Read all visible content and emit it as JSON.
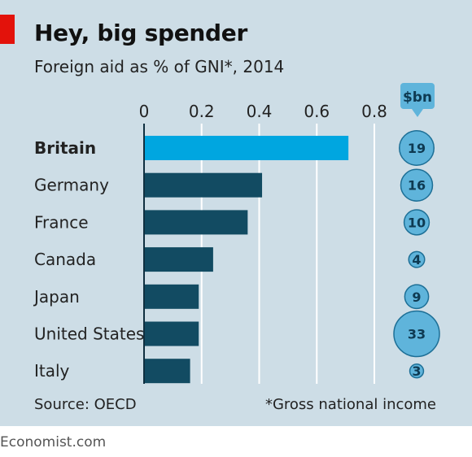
{
  "title": "Hey, big spender",
  "subtitle": "Foreign aid as % of GNI*, 2014",
  "source": "Source: OECD",
  "footnote": "*Gross national income",
  "brand": "Economist.com",
  "colors": {
    "panel": "#cddde6",
    "highlight_bar": "#00a6e0",
    "bar": "#124b62",
    "bubble_fill": "#5fb4db",
    "bubble_stroke": "#1d6f96",
    "accent_red": "#e3120b"
  },
  "chart_data": {
    "type": "bar",
    "orientation": "horizontal",
    "categories": [
      "Britain",
      "Germany",
      "France",
      "Canada",
      "Japan",
      "United States",
      "Italy"
    ],
    "highlighted_category": "Britain",
    "values": [
      0.71,
      0.41,
      0.36,
      0.24,
      0.19,
      0.19,
      0.16
    ],
    "xlim": [
      0,
      0.8
    ],
    "xticks": [
      "0",
      "0.2",
      "0.4",
      "0.6",
      "0.8"
    ],
    "grid": true,
    "bubble_series": {
      "unit_label": "$bn",
      "values": [
        19,
        16,
        10,
        4,
        9,
        33,
        3
      ]
    }
  }
}
